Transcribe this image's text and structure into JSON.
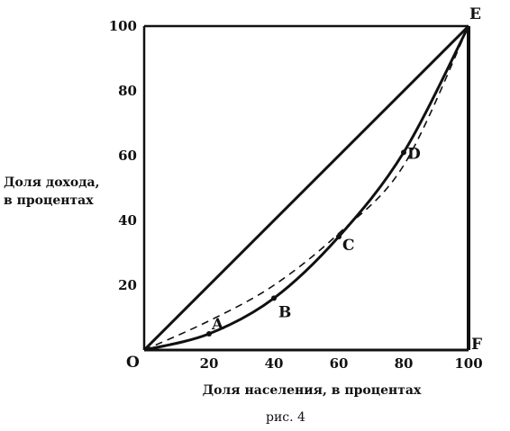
{
  "chart_data": {
    "type": "line",
    "title": "",
    "caption": "рис. 4",
    "xlabel": "Доля населения, в процентах",
    "ylabel_lines": [
      "Доля дохода,",
      "в процентах"
    ],
    "xlim": [
      0,
      100
    ],
    "ylim": [
      0,
      100
    ],
    "x_ticks": [
      20,
      40,
      60,
      80,
      100
    ],
    "y_ticks": [
      20,
      40,
      60,
      80,
      100
    ],
    "grid": false,
    "series": [
      {
        "style": "solid-straight",
        "points": [
          [
            0,
            0
          ],
          [
            100,
            100
          ]
        ]
      },
      {
        "style": "dashed",
        "points": [
          [
            0,
            0
          ],
          [
            20,
            9
          ],
          [
            40,
            20
          ],
          [
            60,
            36
          ],
          [
            80,
            57
          ],
          [
            100,
            100
          ]
        ]
      },
      {
        "style": "solid-curve",
        "points": [
          [
            0,
            0
          ],
          [
            20,
            5
          ],
          [
            40,
            16
          ],
          [
            60,
            35
          ],
          [
            80,
            61
          ],
          [
            100,
            100
          ]
        ]
      }
    ],
    "point_labels": [
      {
        "label": "O",
        "x": 0,
        "y": 0
      },
      {
        "label": "A",
        "x": 20,
        "y": 5,
        "dot": true
      },
      {
        "label": "B",
        "x": 40,
        "y": 16,
        "dot": true
      },
      {
        "label": "C",
        "x": 60,
        "y": 35,
        "dot": true
      },
      {
        "label": "D",
        "x": 80,
        "y": 61,
        "dot": true
      },
      {
        "label": "E",
        "x": 100,
        "y": 100
      },
      {
        "label": "F",
        "x": 100,
        "y": 0
      }
    ]
  }
}
